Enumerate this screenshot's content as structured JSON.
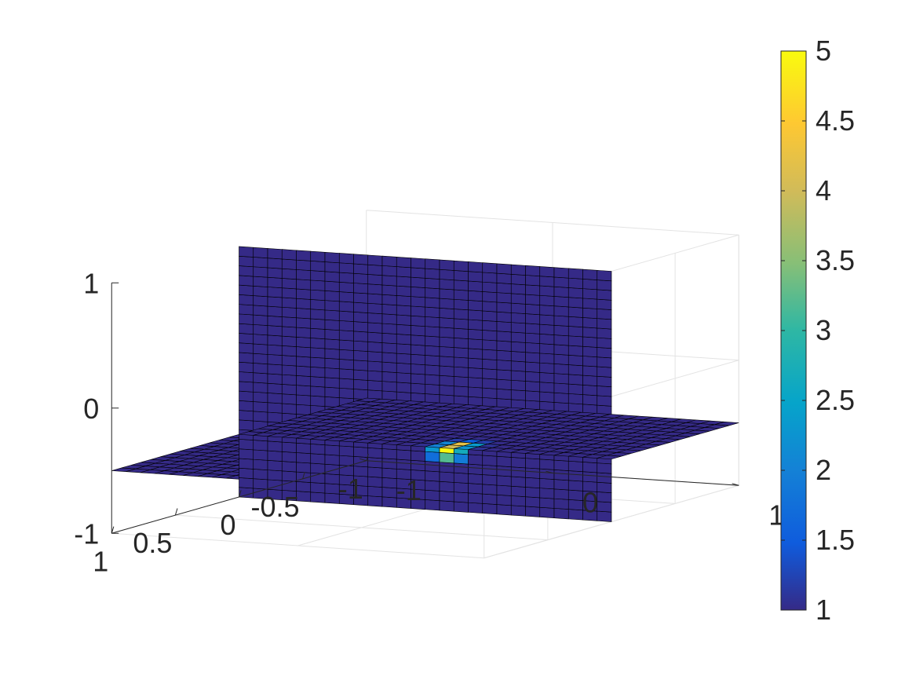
{
  "chart_data": {
    "type": "surface",
    "x_ticks": [
      "-1",
      "-0.5",
      "0",
      "0.5",
      "1"
    ],
    "y_ticks": [
      "-1",
      "0",
      "1"
    ],
    "z_ticks": [
      "-1",
      "0",
      "1"
    ],
    "colorbar": {
      "ticks": [
        "1",
        "1.5",
        "2",
        "2.5",
        "3",
        "3.5",
        "4",
        "4.5",
        "5"
      ],
      "range": [
        1,
        5
      ],
      "colormap": "parula"
    },
    "grid": true,
    "surfaces": [
      {
        "name": "horizontal plane z=-0.5",
        "grid_cells": 26,
        "value": 1
      },
      {
        "name": "vertical plane x=0",
        "grid_cells": 26,
        "value": 1
      }
    ],
    "peak": {
      "x": -0.08,
      "y": 0.12,
      "max_value": 5
    },
    "colors": {
      "base_face": "#3e2bb0",
      "edge": "#000000",
      "grid": "#e3e3e3",
      "axis": "#262626"
    }
  }
}
